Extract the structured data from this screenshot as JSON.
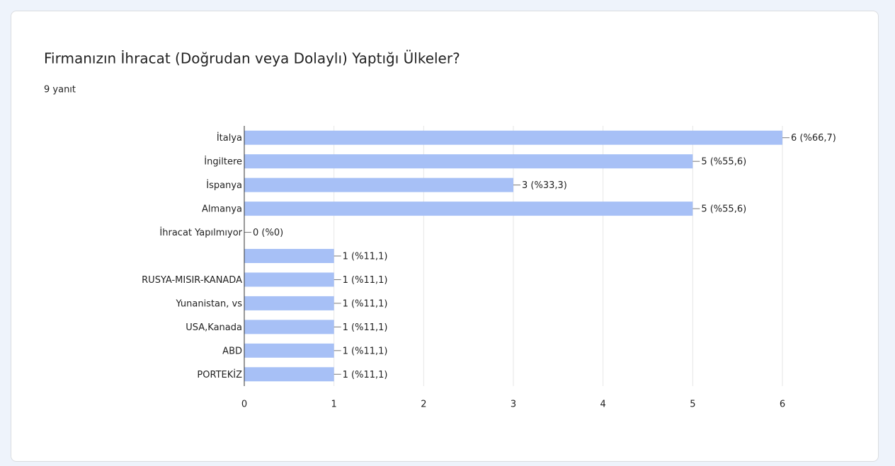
{
  "chart_data": {
    "type": "barh",
    "title": "Firmanızın İhracat (Doğrudan veya Dolaylı) Yaptığı Ülkeler?",
    "subtitle": "9 yanıt",
    "categories": [
      "İtalya",
      "İngiltere",
      "İspanya",
      "Almanya",
      "İhracat Yapılmıyor",
      null,
      "RUSYA-MISIR-KANADA",
      "Yunanistan, vs",
      "USA,Kanada",
      "ABD",
      "PORTEKİZ"
    ],
    "values": [
      6,
      5,
      3,
      5,
      0,
      1,
      1,
      1,
      1,
      1,
      1
    ],
    "value_labels": [
      "6 (%66,7)",
      "5 (%55,6)",
      "3 (%33,3)",
      "5 (%55,6)",
      "0 (%0)",
      "1 (%11,1)",
      "1 (%11,1)",
      "1 (%11,1)",
      "1 (%11,1)",
      "1 (%11,1)",
      "1 (%11,1)"
    ],
    "color": "#a7c0f6",
    "xlim": [
      0,
      6
    ],
    "xticks": [
      0,
      1,
      2,
      3,
      4,
      5,
      6
    ],
    "grid": true
  }
}
